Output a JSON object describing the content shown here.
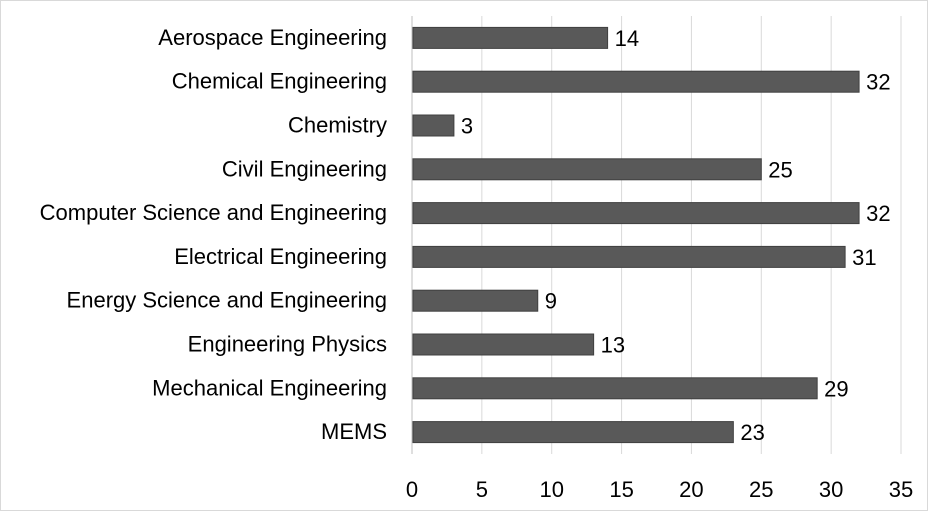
{
  "chart_data": {
    "type": "bar",
    "orientation": "horizontal",
    "title": "",
    "xlabel": "",
    "ylabel": "",
    "categories": [
      "Aerospace Engineering",
      "Chemical Engineering",
      "Chemistry",
      "Civil Engineering",
      "Computer Science and Engineering",
      "Electrical Engineering",
      "Energy Science and Engineering",
      "Engineering Physics",
      "Mechanical Engineering",
      "MEMS"
    ],
    "values": [
      14,
      32,
      3,
      25,
      32,
      31,
      9,
      13,
      29,
      23
    ],
    "xlim": [
      0,
      35
    ],
    "xticks": [
      0,
      5,
      10,
      15,
      20,
      25,
      30,
      35
    ],
    "xtick_labels": [
      "0",
      "5",
      "10",
      "15",
      "20",
      "25",
      "30",
      "35"
    ],
    "data_labels": [
      "14",
      "32",
      "3",
      "25",
      "32",
      "31",
      "9",
      "13",
      "29",
      "23"
    ],
    "grid": "vertical",
    "legend": "none",
    "colors": {
      "bar_fill": "#595959",
      "bar_stroke": "#404040",
      "grid": "#d9d9d9",
      "axis": "#bfbfbf"
    }
  }
}
